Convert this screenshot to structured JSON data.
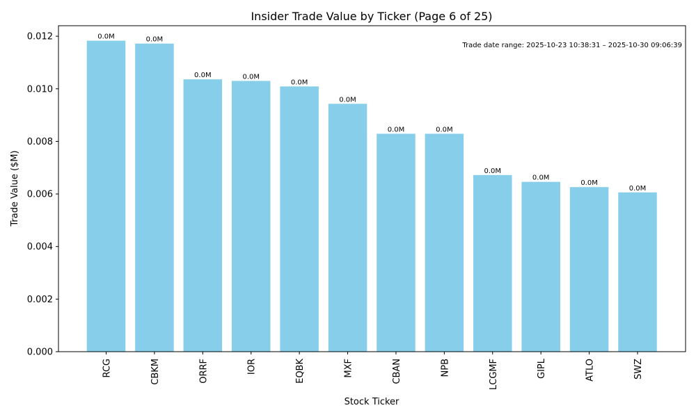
{
  "chart_data": {
    "type": "bar",
    "title": "Insider Trade Value by Ticker (Page 6 of 25)",
    "xlabel": "Stock Ticker",
    "ylabel": "Trade Value ($M)",
    "categories": [
      "RCG",
      "CBKM",
      "ORRF",
      "IOR",
      "EQBK",
      "MXF",
      "CBAN",
      "NPB",
      "LCGMF",
      "GIPL",
      "ATLO",
      "SWZ"
    ],
    "values": [
      0.01183,
      0.01172,
      0.01036,
      0.0103,
      0.01009,
      0.00943,
      0.00829,
      0.00829,
      0.00672,
      0.00646,
      0.00626,
      0.00606
    ],
    "data_labels": [
      "0.0M",
      "0.0M",
      "0.0M",
      "0.0M",
      "0.0M",
      "0.0M",
      "0.0M",
      "0.0M",
      "0.0M",
      "0.0M",
      "0.0M",
      "0.0M"
    ],
    "ylim": [
      0,
      0.0124
    ],
    "yticks": [
      "0.000",
      "0.002",
      "0.004",
      "0.006",
      "0.008",
      "0.010",
      "0.012"
    ],
    "ytick_values": [
      0,
      0.002,
      0.004,
      0.006,
      0.008,
      0.01,
      0.012
    ],
    "annotation": "Trade date range: 2025-10-23 10:38:31 – 2025-10-30 09:06:39",
    "bar_color": "#87ceeb",
    "grid": false
  }
}
